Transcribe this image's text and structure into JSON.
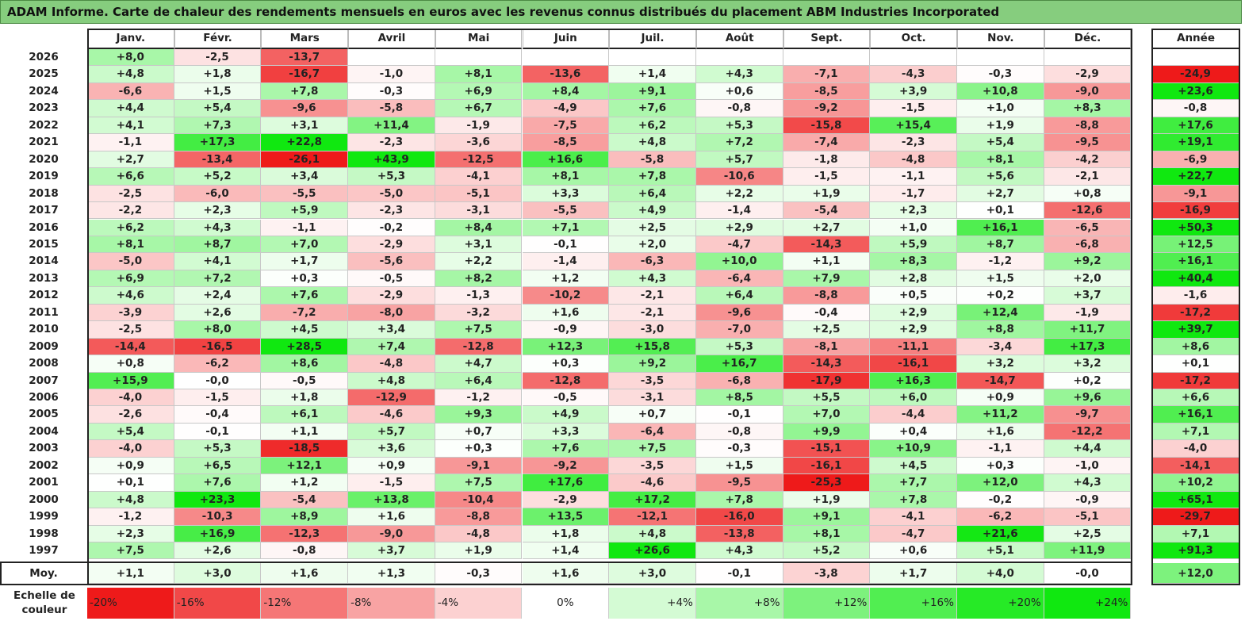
{
  "title": "ADAM Informe. Carte de chaleur des rendements mensuels en euros avec les revenus connus distribués du placement ABM Industries Incorporated",
  "colors": {
    "title_bg": "#86cd7e",
    "negative_max": "#ee1a1a",
    "positive_max": "#10e810",
    "neutral": "#ffffff"
  },
  "chart_data": {
    "type": "heatmap",
    "title": "ADAM Informe. Carte de chaleur des rendements mensuels en euros avec les revenus connus distribués du placement ABM Industries Incorporated",
    "months": [
      "Janv.",
      "Févr.",
      "Mars",
      "Avril",
      "Mai",
      "Juin",
      "Juil.",
      "Août",
      "Sept.",
      "Oct.",
      "Nov.",
      "Déc."
    ],
    "year_header": "Année",
    "rows": [
      {
        "year": "2026",
        "months": [
          "+8,0",
          "-2,5",
          "-13,7",
          "",
          "",
          "",
          "",
          "",
          "",
          "",
          "",
          ""
        ],
        "annual": ""
      },
      {
        "year": "2025",
        "months": [
          "+4,8",
          "+1,8",
          "-16,7",
          "-1,0",
          "+8,1",
          "-13,6",
          "+1,4",
          "+4,3",
          "-7,1",
          "-4,3",
          "-0,3",
          "-2,9"
        ],
        "annual": "-24,9"
      },
      {
        "year": "2024",
        "months": [
          "-6,6",
          "+1,5",
          "+7,8",
          "-0,3",
          "+6,9",
          "+8,4",
          "+9,1",
          "+0,6",
          "-8,5",
          "+3,9",
          "+10,8",
          "-9,0"
        ],
        "annual": "+23,6"
      },
      {
        "year": "2023",
        "months": [
          "+4,4",
          "+5,4",
          "-9,6",
          "-5,8",
          "+6,7",
          "-4,9",
          "+7,6",
          "-0,8",
          "-9,2",
          "-1,5",
          "+1,0",
          "+8,3"
        ],
        "annual": "-0,8"
      },
      {
        "year": "2022",
        "months": [
          "+4,1",
          "+7,3",
          "+3,1",
          "+11,4",
          "-1,9",
          "-7,5",
          "+6,2",
          "+5,3",
          "-15,8",
          "+15,4",
          "+1,9",
          "-8,8"
        ],
        "annual": "+17,6"
      },
      {
        "year": "2021",
        "months": [
          "-1,1",
          "+17,3",
          "+22,8",
          "-2,3",
          "-3,6",
          "-8,5",
          "+4,8",
          "+7,2",
          "-7,4",
          "-2,3",
          "+5,4",
          "-9,5"
        ],
        "annual": "+19,1"
      },
      {
        "year": "2020",
        "months": [
          "+2,7",
          "-13,4",
          "-26,1",
          "+43,9",
          "-12,5",
          "+16,6",
          "-5,8",
          "+5,7",
          "-1,8",
          "-4,8",
          "+8,1",
          "-4,2"
        ],
        "annual": "-6,9"
      },
      {
        "year": "2019",
        "months": [
          "+6,6",
          "+5,2",
          "+3,4",
          "+5,3",
          "-4,1",
          "+8,1",
          "+7,8",
          "-10,6",
          "-1,5",
          "-1,1",
          "+5,6",
          "-2,1"
        ],
        "annual": "+22,7"
      },
      {
        "year": "2018",
        "months": [
          "-2,5",
          "-6,0",
          "-5,5",
          "-5,0",
          "-5,1",
          "+3,3",
          "+6,4",
          "+2,2",
          "+1,9",
          "-1,7",
          "+2,7",
          "+0,8"
        ],
        "annual": "-9,1"
      },
      {
        "year": "2017",
        "months": [
          "-2,2",
          "+2,3",
          "+5,9",
          "-2,3",
          "-3,1",
          "-5,5",
          "+4,9",
          "-1,4",
          "-5,4",
          "+2,3",
          "+0,1",
          "-12,6"
        ],
        "annual": "-16,9"
      },
      {
        "year": "2016",
        "months": [
          "+6,2",
          "+4,3",
          "-1,1",
          "-0,2",
          "+8,4",
          "+7,1",
          "+2,5",
          "+2,9",
          "+2,7",
          "+1,0",
          "+16,1",
          "-6,5"
        ],
        "annual": "+50,3"
      },
      {
        "year": "2015",
        "months": [
          "+8,1",
          "+8,7",
          "+7,0",
          "-2,9",
          "+3,1",
          "-0,1",
          "+2,0",
          "-4,7",
          "-14,3",
          "+5,9",
          "+8,7",
          "-6,8"
        ],
        "annual": "+12,5"
      },
      {
        "year": "2014",
        "months": [
          "-5,0",
          "+4,1",
          "+1,7",
          "-5,6",
          "+2,2",
          "-1,4",
          "-6,3",
          "+10,0",
          "+1,1",
          "+8,3",
          "-1,2",
          "+9,2"
        ],
        "annual": "+16,1"
      },
      {
        "year": "2013",
        "months": [
          "+6,9",
          "+7,2",
          "+0,3",
          "-0,5",
          "+8,2",
          "+1,2",
          "+4,3",
          "-6,4",
          "+7,9",
          "+2,8",
          "+1,5",
          "+2,0"
        ],
        "annual": "+40,4"
      },
      {
        "year": "2012",
        "months": [
          "+4,6",
          "+2,4",
          "+7,6",
          "-2,9",
          "-1,3",
          "-10,2",
          "-2,1",
          "+6,4",
          "-8,8",
          "+0,5",
          "+0,2",
          "+3,7"
        ],
        "annual": "-1,6"
      },
      {
        "year": "2011",
        "months": [
          "-3,9",
          "+2,6",
          "-7,2",
          "-8,0",
          "-3,2",
          "+1,6",
          "-2,1",
          "-9,6",
          "-0,4",
          "+2,9",
          "+12,4",
          "-1,9"
        ],
        "annual": "-17,2"
      },
      {
        "year": "2010",
        "months": [
          "-2,5",
          "+8,0",
          "+4,5",
          "+3,4",
          "+7,5",
          "-0,9",
          "-3,0",
          "-7,0",
          "+2,5",
          "+2,9",
          "+8,8",
          "+11,7"
        ],
        "annual": "+39,7"
      },
      {
        "year": "2009",
        "months": [
          "-14,4",
          "-16,5",
          "+28,5",
          "+7,4",
          "-12,8",
          "+12,3",
          "+15,8",
          "+5,3",
          "-8,1",
          "-11,1",
          "-3,4",
          "+17,3"
        ],
        "annual": "+8,6"
      },
      {
        "year": "2008",
        "months": [
          "+0,8",
          "-6,2",
          "+8,6",
          "-4,8",
          "+4,7",
          "+0,3",
          "+9,2",
          "+16,7",
          "-14,3",
          "-16,1",
          "+3,2",
          "+3,2"
        ],
        "annual": "+0,1"
      },
      {
        "year": "2007",
        "months": [
          "+15,9",
          "-0,0",
          "-0,5",
          "+4,8",
          "+6,4",
          "-12,8",
          "-3,5",
          "-6,8",
          "-17,9",
          "+16,3",
          "-14,7",
          "+0,2"
        ],
        "annual": "-17,2"
      },
      {
        "year": "2006",
        "months": [
          "-4,0",
          "-1,5",
          "+1,8",
          "-12,9",
          "-1,2",
          "-0,5",
          "-3,1",
          "+8,5",
          "+5,5",
          "+6,0",
          "+0,9",
          "+9,6"
        ],
        "annual": "+6,6"
      },
      {
        "year": "2005",
        "months": [
          "-2,6",
          "-0,4",
          "+6,1",
          "-4,6",
          "+9,3",
          "+4,9",
          "+0,7",
          "-0,1",
          "+7,0",
          "-4,4",
          "+11,2",
          "-9,7"
        ],
        "annual": "+16,1"
      },
      {
        "year": "2004",
        "months": [
          "+5,4",
          "-0,1",
          "+1,1",
          "+5,7",
          "+0,7",
          "+3,3",
          "-6,4",
          "-0,8",
          "+9,9",
          "+0,4",
          "+1,6",
          "-12,2"
        ],
        "annual": "+7,1"
      },
      {
        "year": "2003",
        "months": [
          "-4,0",
          "+5,3",
          "-18,5",
          "+3,6",
          "+0,3",
          "+7,6",
          "+7,5",
          "-0,3",
          "-15,1",
          "+10,9",
          "-1,1",
          "+4,4"
        ],
        "annual": "-4,0"
      },
      {
        "year": "2002",
        "months": [
          "+0,9",
          "+6,5",
          "+12,1",
          "+0,9",
          "-9,1",
          "-9,2",
          "-3,5",
          "+1,5",
          "-16,1",
          "+4,5",
          "+0,3",
          "-1,0"
        ],
        "annual": "-14,1"
      },
      {
        "year": "2001",
        "months": [
          "+0,1",
          "+7,6",
          "+1,2",
          "-1,5",
          "+7,5",
          "+17,6",
          "-4,6",
          "-9,5",
          "-25,3",
          "+7,7",
          "+12,0",
          "+4,3"
        ],
        "annual": "+10,2"
      },
      {
        "year": "2000",
        "months": [
          "+4,8",
          "+23,3",
          "-5,4",
          "+13,8",
          "-10,4",
          "-2,9",
          "+17,2",
          "+7,8",
          "+1,9",
          "+7,8",
          "-0,2",
          "-0,9"
        ],
        "annual": "+65,1"
      },
      {
        "year": "1999",
        "months": [
          "-1,2",
          "-10,3",
          "+8,9",
          "+1,6",
          "-8,8",
          "+13,5",
          "-12,1",
          "-16,0",
          "+9,1",
          "-4,1",
          "-6,2",
          "-5,1"
        ],
        "annual": "-29,7"
      },
      {
        "year": "1998",
        "months": [
          "+2,3",
          "+16,9",
          "-12,3",
          "-9,0",
          "-4,8",
          "+1,8",
          "+4,8",
          "-13,8",
          "+8,1",
          "-4,7",
          "+21,6",
          "+2,5"
        ],
        "annual": "+7,1"
      },
      {
        "year": "1997",
        "months": [
          "+7,5",
          "+2,6",
          "-0,8",
          "+3,7",
          "+1,9",
          "+1,4",
          "+26,6",
          "+4,3",
          "+5,2",
          "+0,6",
          "+5,1",
          "+11,9"
        ],
        "annual": "+91,3"
      }
    ],
    "average": {
      "label": "Moy.",
      "months": [
        "+1,1",
        "+3,0",
        "+1,6",
        "+1,3",
        "-0,3",
        "+1,6",
        "+3,0",
        "-0,1",
        "-3,8",
        "+1,7",
        "+4,0",
        "-0,0"
      ],
      "annual": "+12,0"
    },
    "scale": {
      "label": "Echelle de couleur",
      "stops": [
        {
          "text": "-20%",
          "value": -20
        },
        {
          "text": "-16%",
          "value": -16
        },
        {
          "text": "-12%",
          "value": -12
        },
        {
          "text": "-8%",
          "value": -8
        },
        {
          "text": "-4%",
          "value": -4
        },
        {
          "text": "0%",
          "value": 0
        },
        {
          "text": "+4%",
          "value": 4
        },
        {
          "text": "+8%",
          "value": 8
        },
        {
          "text": "+12%",
          "value": 12
        },
        {
          "text": "+16%",
          "value": 16
        },
        {
          "text": "+20%",
          "value": 20
        },
        {
          "text": "+24%",
          "value": 24
        }
      ]
    }
  }
}
